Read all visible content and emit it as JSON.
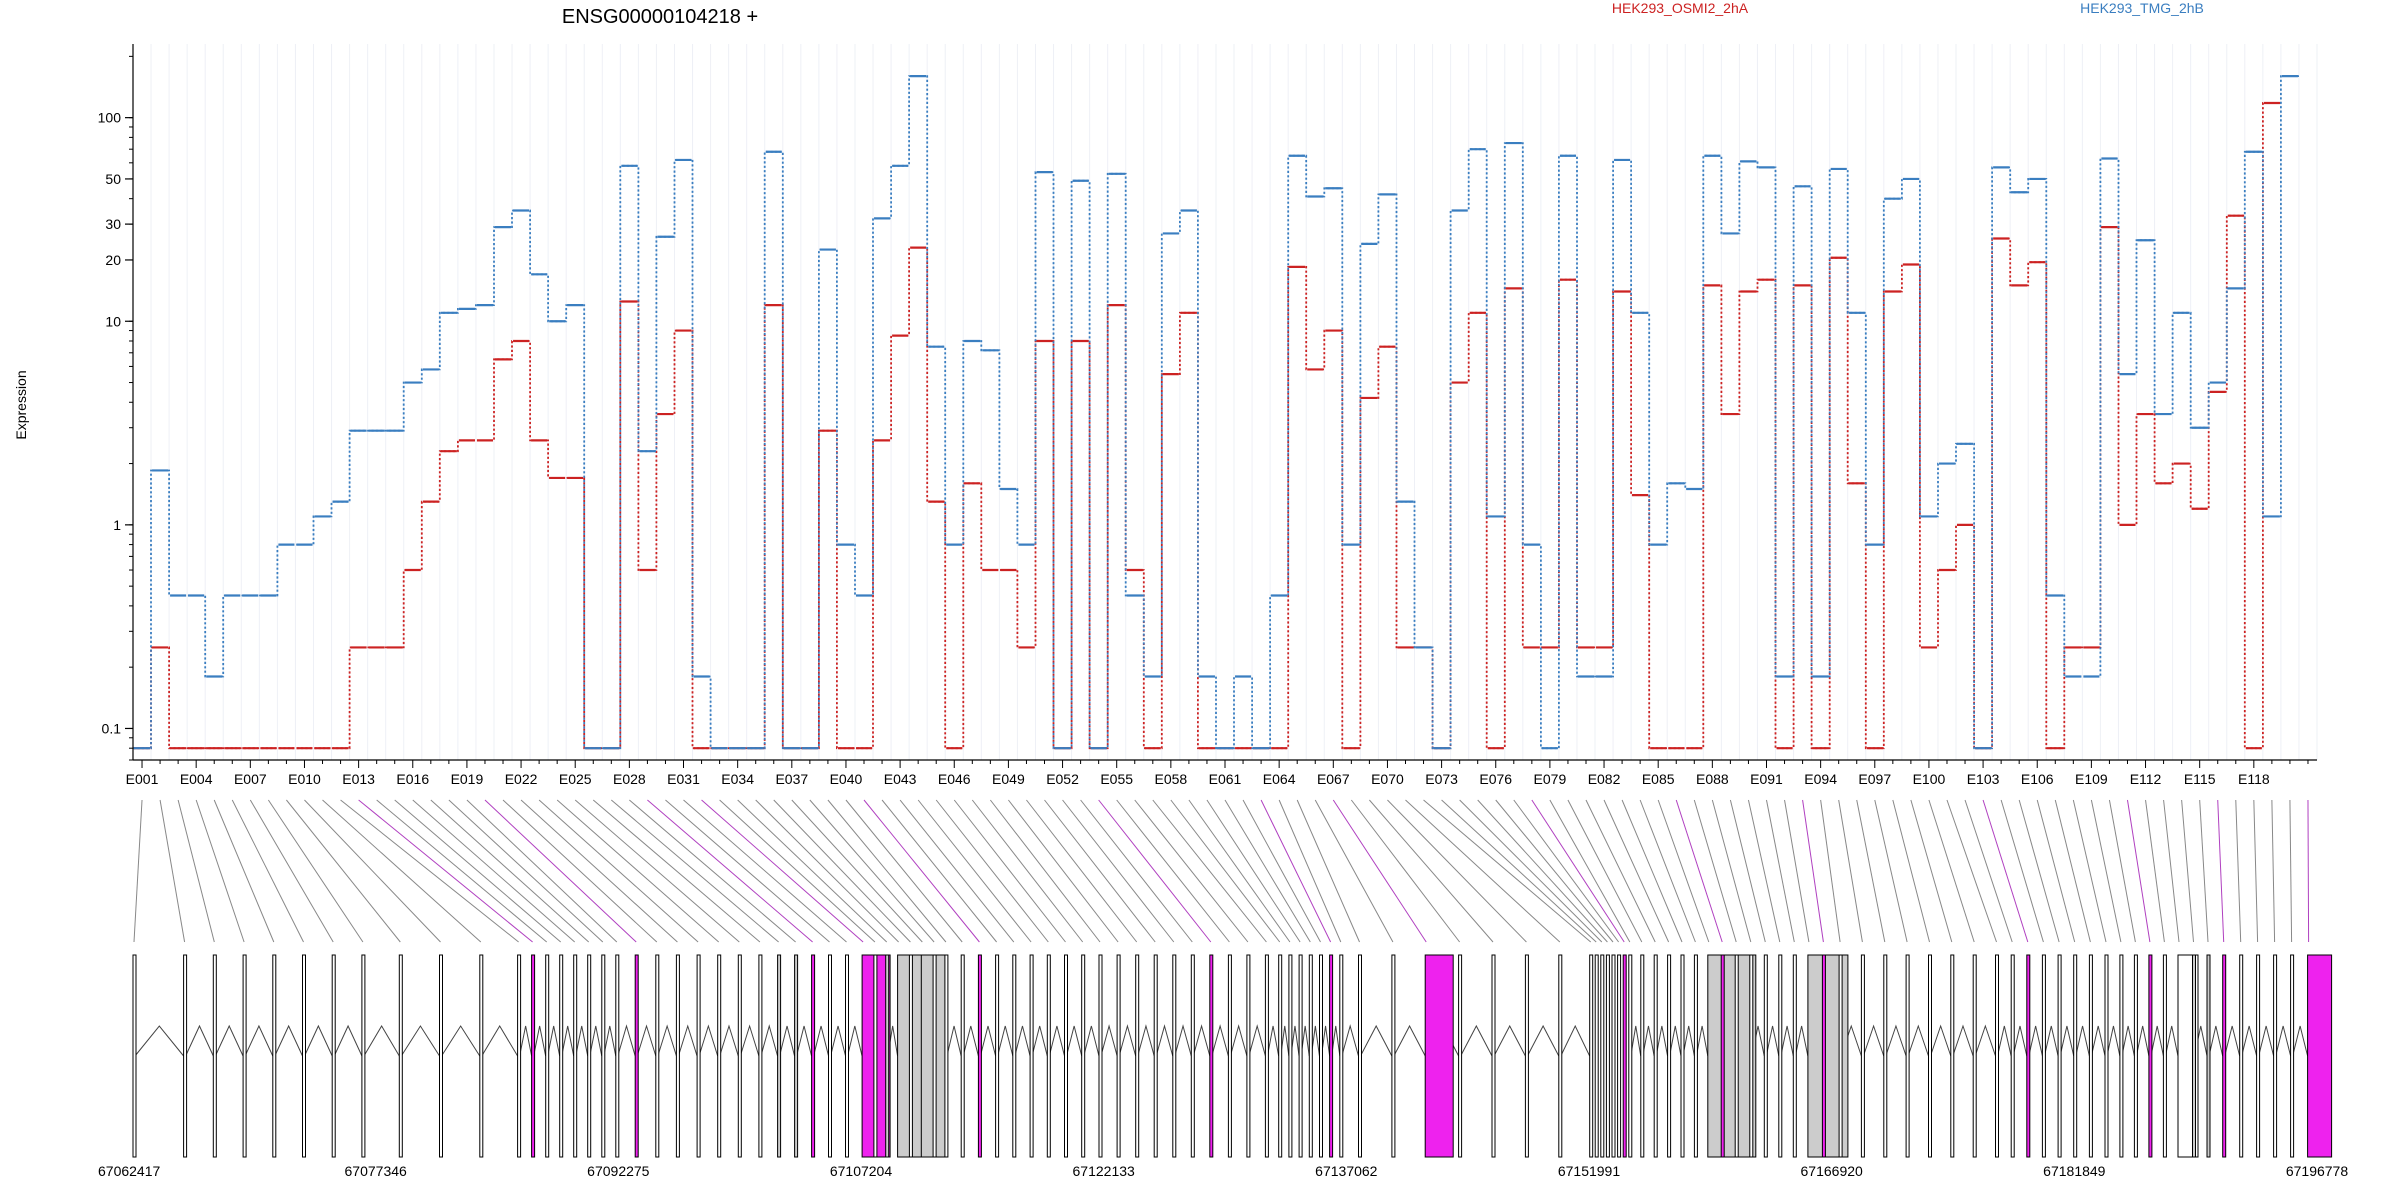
{
  "chart_data": {
    "type": "line",
    "title": "ENSG00000104218 +",
    "ylabel": "Expression",
    "yscale": "log",
    "ylim": [
      0.07,
      230
    ],
    "yticks": [
      0.1,
      1,
      10,
      20,
      30,
      50,
      100
    ],
    "ytick_labels": [
      "0.1",
      "1",
      "10",
      "20",
      "30",
      "50",
      "100"
    ],
    "grid": "vertical",
    "legend_position": "top",
    "colors": {
      "series_a": "#cc2222",
      "series_b": "#3a7ec0",
      "exon_highlight": "#ee22ee",
      "exon_fill": "#cccccc",
      "mapping_line": "#888888"
    },
    "exons": [
      "E001",
      "E002",
      "E003",
      "E004",
      "E005",
      "E006",
      "E007",
      "E008",
      "E009",
      "E010",
      "E011",
      "E012",
      "E013",
      "E014",
      "E015",
      "E016",
      "E017",
      "E018",
      "E019",
      "E020",
      "E021",
      "E022",
      "E023",
      "E024",
      "E025",
      "E026",
      "E027",
      "E028",
      "E029",
      "E030",
      "E031",
      "E032",
      "E033",
      "E034",
      "E035",
      "E036",
      "E037",
      "E038",
      "E039",
      "E040",
      "E041",
      "E042",
      "E043",
      "E044",
      "E045",
      "E046",
      "E047",
      "E048",
      "E049",
      "E050",
      "E051",
      "E052",
      "E053",
      "E054",
      "E055",
      "E056",
      "E057",
      "E058",
      "E059",
      "E060",
      "E061",
      "E062",
      "E063",
      "E064",
      "E065",
      "E066",
      "E067",
      "E068",
      "E069",
      "E070",
      "E071",
      "E072",
      "E073",
      "E074",
      "E075",
      "E076",
      "E077",
      "E078",
      "E079",
      "E080",
      "E081",
      "E082",
      "E083",
      "E084",
      "E085",
      "E086",
      "E087",
      "E088",
      "E089",
      "E090",
      "E091",
      "E092",
      "E093",
      "E094",
      "E095",
      "E096",
      "E097",
      "E098",
      "E099",
      "E100",
      "E101",
      "E102",
      "E103",
      "E104",
      "E105",
      "E106",
      "E107",
      "E108",
      "E109",
      "E110",
      "E111",
      "E112",
      "E113",
      "E114",
      "E115",
      "E116",
      "E117",
      "E118",
      "E119",
      "E120",
      "E121"
    ],
    "exon_tick_labels": [
      "E001",
      "E004",
      "E007",
      "E010",
      "E013",
      "E016",
      "E019",
      "E022",
      "E025",
      "E028",
      "E031",
      "E034",
      "E037",
      "E040",
      "E043",
      "E046",
      "E049",
      "E052",
      "E055",
      "E058",
      "E061",
      "E064",
      "E067",
      "E070",
      "E073",
      "E076",
      "E079",
      "E082",
      "E085",
      "E088",
      "E091",
      "E094",
      "E097",
      "E100",
      "E103",
      "E106",
      "E109",
      "E112",
      "E115",
      "E118"
    ],
    "series": [
      {
        "name": "HEK293_OSMI2_2hA",
        "values": [
          0.08,
          0.25,
          0.08,
          0.08,
          0.08,
          0.08,
          0.08,
          0.08,
          0.08,
          0.08,
          0.08,
          0.08,
          0.25,
          0.25,
          0.25,
          0.6,
          1.3,
          2.3,
          2.6,
          2.6,
          6.5,
          8,
          2.6,
          1.7,
          1.7,
          0.08,
          0.08,
          12.5,
          0.6,
          3.5,
          9,
          0.08,
          0.08,
          0.08,
          0.08,
          12,
          0.08,
          0.08,
          2.9,
          0.08,
          0.08,
          2.6,
          8.5,
          23,
          1.3,
          0.08,
          1.6,
          0.6,
          0.6,
          0.25,
          8,
          0.08,
          8,
          0.08,
          12,
          0.6,
          0.08,
          5.5,
          11,
          0.08,
          0.08,
          0.08,
          0.08,
          0.08,
          18.5,
          5.8,
          9,
          0.08,
          4.2,
          7.5,
          0.25,
          0.25,
          0.08,
          5,
          11,
          0.08,
          14.5,
          0.25,
          0.25,
          16,
          0.25,
          0.25,
          14,
          1.4,
          0.08,
          0.08,
          0.08,
          15,
          3.5,
          14,
          16,
          0.08,
          15,
          0.08,
          20.5,
          1.6,
          0.08,
          14,
          19,
          0.25,
          0.6,
          1,
          0.08,
          25.5,
          15,
          19.5,
          0.08,
          0.25,
          0.25,
          29,
          1,
          3.5,
          1.6,
          2,
          1.2,
          4.5,
          33,
          0.08,
          118
        ]
      },
      {
        "name": "HEK293_TMG_2hB",
        "values": [
          0.08,
          1.85,
          0.45,
          0.45,
          0.18,
          0.45,
          0.45,
          0.45,
          0.8,
          0.8,
          1.1,
          1.3,
          2.9,
          2.9,
          2.9,
          5,
          5.8,
          11,
          11.5,
          12,
          29,
          35,
          17,
          10,
          12,
          0.08,
          0.08,
          58,
          2.3,
          26,
          62,
          0.18,
          0.08,
          0.08,
          0.08,
          68,
          0.08,
          0.08,
          22.5,
          0.8,
          0.45,
          32,
          58,
          160,
          7.5,
          0.8,
          8,
          7.2,
          1.5,
          0.8,
          54,
          0.08,
          49,
          0.08,
          53,
          0.45,
          0.18,
          27,
          35,
          0.18,
          0.08,
          0.18,
          0.08,
          0.45,
          65,
          41,
          45,
          0.8,
          24,
          42,
          1.3,
          0.25,
          0.08,
          35,
          70,
          1.1,
          75,
          0.8,
          0.08,
          65,
          0.18,
          0.18,
          62,
          11,
          0.8,
          1.6,
          1.5,
          65,
          27,
          61,
          57,
          0.18,
          46,
          0.18,
          56,
          11,
          0.8,
          40,
          50,
          1.1,
          2,
          2.5,
          0.08,
          57,
          43,
          50,
          0.45,
          0.18,
          0.18,
          63,
          5.5,
          25,
          3.5,
          11,
          3,
          5,
          14.5,
          68,
          1.1,
          160
        ]
      }
    ],
    "genomic_ticks": [
      67062417,
      67077346,
      67092275,
      67107204,
      67122133,
      67137062,
      67151991,
      67166920,
      67181849,
      67196778
    ],
    "genomic_tick_labels": [
      "67062417",
      "67077346",
      "67092275",
      "67107204",
      "67122133",
      "67137062",
      "67151991",
      "67166920",
      "67181849",
      "67196778"
    ]
  }
}
